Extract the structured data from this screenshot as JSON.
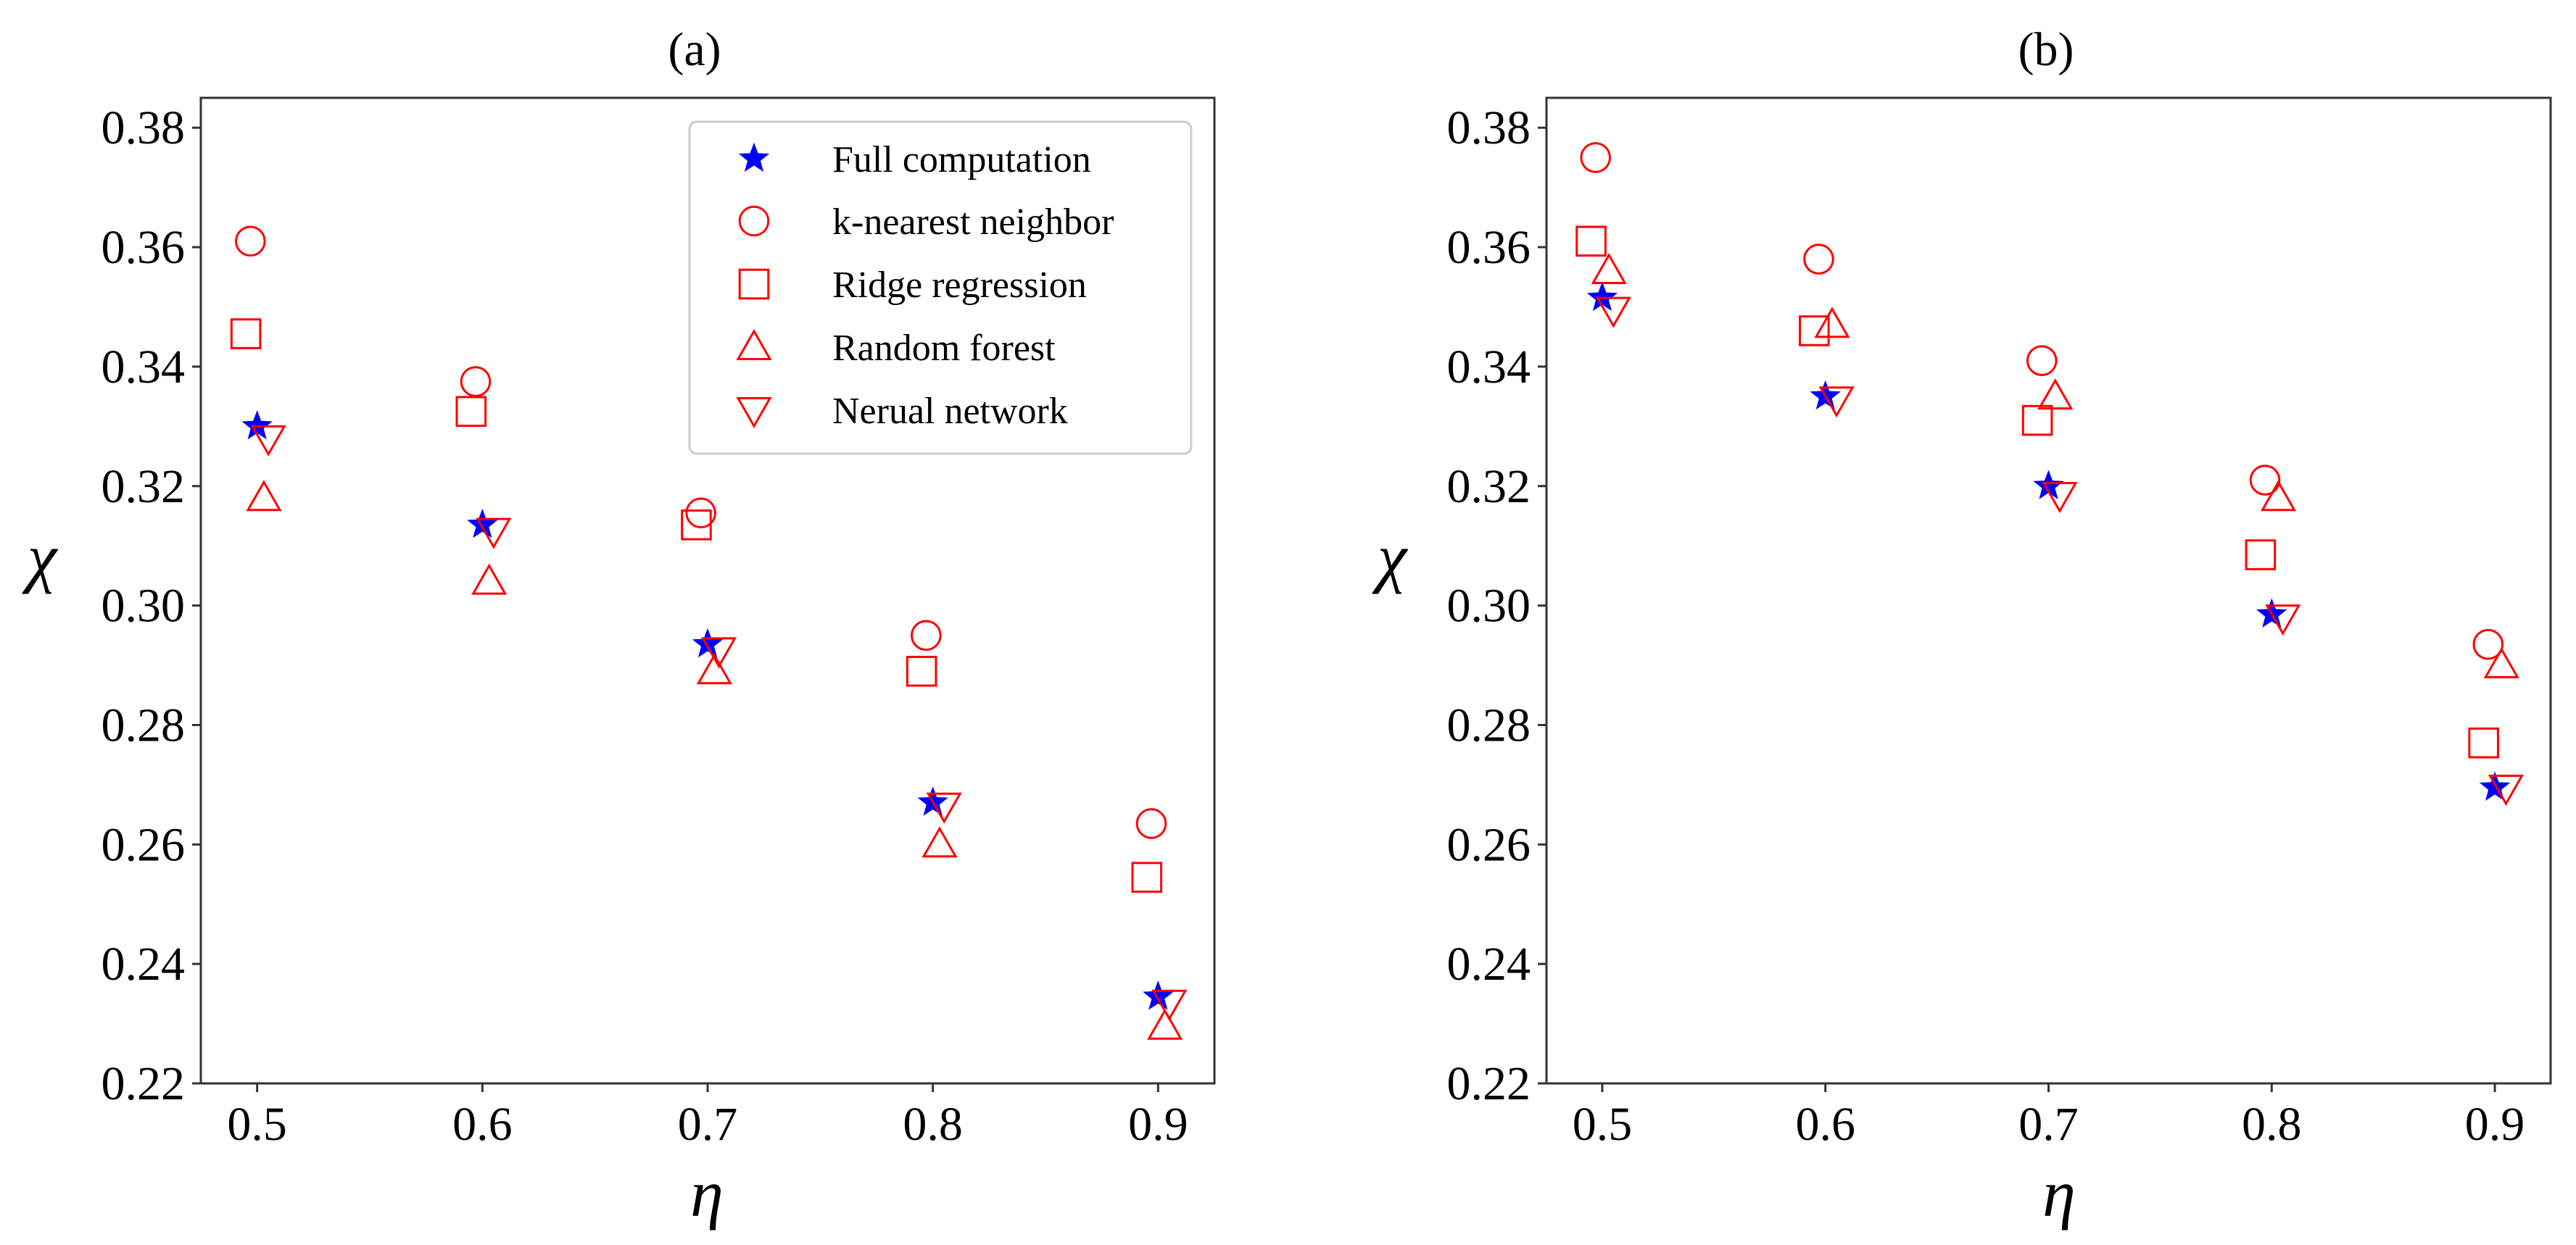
{
  "colors": {
    "full_computation": "#0000ff",
    "models": "#ff0000",
    "axes": "#333333",
    "legend_border": "#cccccc"
  },
  "legend": {
    "items": [
      {
        "key": "full",
        "label": "Full computation",
        "marker": "star"
      },
      {
        "key": "knn",
        "label": "k-nearest neighbor",
        "marker": "circle"
      },
      {
        "key": "ridge",
        "label": "Ridge regression",
        "marker": "square"
      },
      {
        "key": "rf",
        "label": "Random forest",
        "marker": "triangle-up"
      },
      {
        "key": "nn",
        "label": "Nerual network",
        "marker": "triangle-down"
      }
    ]
  },
  "chart_data": [
    {
      "type": "scatter",
      "title": "(a)",
      "xlabel": "η",
      "ylabel": "χ",
      "xlim": [
        0.475,
        0.925
      ],
      "ylim": [
        0.22,
        0.385
      ],
      "xticks": [
        "0.5",
        "0.6",
        "0.7",
        "0.8",
        "0.9"
      ],
      "yticks": [
        "0.22",
        "0.24",
        "0.26",
        "0.28",
        "0.30",
        "0.32",
        "0.34",
        "0.36",
        "0.38"
      ],
      "show_legend": true,
      "series": [
        {
          "key": "full",
          "name": "Full computation",
          "marker": "star",
          "x": [
            0.5,
            0.6,
            0.7,
            0.8,
            0.9
          ],
          "y": [
            0.33,
            0.3135,
            0.2935,
            0.267,
            0.2345
          ]
        },
        {
          "key": "knn",
          "name": "k-nearest neighbor",
          "marker": "circle",
          "x": [
            0.497,
            0.597,
            0.697,
            0.797,
            0.897
          ],
          "y": [
            0.361,
            0.3375,
            0.3155,
            0.295,
            0.2635
          ]
        },
        {
          "key": "ridge",
          "name": "Ridge regression",
          "marker": "square",
          "x": [
            0.495,
            0.595,
            0.695,
            0.795,
            0.895
          ],
          "y": [
            0.3455,
            0.3325,
            0.3135,
            0.289,
            0.2545
          ]
        },
        {
          "key": "rf",
          "name": "Random forest",
          "marker": "triangle-up",
          "x": [
            0.503,
            0.603,
            0.703,
            0.803,
            0.903
          ],
          "y": [
            0.318,
            0.304,
            0.289,
            0.26,
            0.2295
          ]
        },
        {
          "key": "nn",
          "name": "Nerual network",
          "marker": "triangle-down",
          "x": [
            0.505,
            0.605,
            0.705,
            0.805,
            0.905
          ],
          "y": [
            0.328,
            0.3125,
            0.2925,
            0.2665,
            0.2335
          ]
        }
      ]
    },
    {
      "type": "scatter",
      "title": "(b)",
      "xlabel": "η",
      "ylabel": "χ",
      "xlim": [
        0.475,
        0.925
      ],
      "ylim": [
        0.22,
        0.385
      ],
      "xticks": [
        "0.5",
        "0.6",
        "0.7",
        "0.8",
        "0.9"
      ],
      "yticks": [
        "0.22",
        "0.24",
        "0.26",
        "0.28",
        "0.30",
        "0.32",
        "0.34",
        "0.36",
        "0.38"
      ],
      "show_legend": false,
      "series": [
        {
          "key": "full",
          "name": "Full computation",
          "marker": "star",
          "x": [
            0.5,
            0.6,
            0.7,
            0.8,
            0.9
          ],
          "y": [
            0.3515,
            0.335,
            0.32,
            0.2985,
            0.2695
          ]
        },
        {
          "key": "knn",
          "name": "k-nearest neighbor",
          "marker": "circle",
          "x": [
            0.497,
            0.597,
            0.697,
            0.797,
            0.897
          ],
          "y": [
            0.375,
            0.358,
            0.341,
            0.321,
            0.2935
          ]
        },
        {
          "key": "ridge",
          "name": "Ridge regression",
          "marker": "square",
          "x": [
            0.495,
            0.595,
            0.695,
            0.795,
            0.895
          ],
          "y": [
            0.361,
            0.346,
            0.331,
            0.3085,
            0.277
          ]
        },
        {
          "key": "rf",
          "name": "Random forest",
          "marker": "triangle-up",
          "x": [
            0.503,
            0.603,
            0.703,
            0.803,
            0.903
          ],
          "y": [
            0.356,
            0.347,
            0.335,
            0.318,
            0.29
          ]
        },
        {
          "key": "nn",
          "name": "Nerual network",
          "marker": "triangle-down",
          "x": [
            0.505,
            0.605,
            0.705,
            0.805,
            0.905
          ],
          "y": [
            0.3495,
            0.3345,
            0.3185,
            0.298,
            0.2695
          ]
        }
      ]
    }
  ]
}
